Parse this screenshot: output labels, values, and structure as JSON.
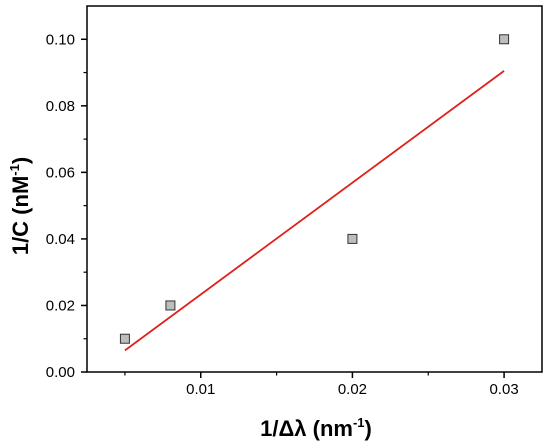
{
  "chart_data": {
    "type": "scatter",
    "xlabel": {
      "base": "1/Δλ (nm",
      "sup": "-1",
      "end": ")"
    },
    "ylabel": {
      "base": "1/C (nM",
      "sup": "-1",
      "end": ")"
    },
    "xlim": [
      0.0025,
      0.0325
    ],
    "ylim": [
      0.0,
      0.11
    ],
    "x_ticks": [
      0.01,
      0.02,
      0.03
    ],
    "x_tick_labels": [
      "0.01",
      "0.02",
      "0.03"
    ],
    "y_ticks": [
      0.0,
      0.02,
      0.04,
      0.06,
      0.08,
      0.1
    ],
    "y_tick_labels": [
      "0.00",
      "0.02",
      "0.04",
      "0.06",
      "0.08",
      "0.10"
    ],
    "grid": false,
    "series": [
      {
        "type": "scatter",
        "marker": "square",
        "color": "#bdbdbd",
        "points": [
          {
            "x": 0.005,
            "y": 0.01
          },
          {
            "x": 0.008,
            "y": 0.02
          },
          {
            "x": 0.02,
            "y": 0.04
          },
          {
            "x": 0.03,
            "y": 0.1
          }
        ]
      },
      {
        "type": "line",
        "color": "#e0201b",
        "points": [
          {
            "x": 0.005,
            "y": 0.0065
          },
          {
            "x": 0.03,
            "y": 0.0905
          }
        ]
      }
    ]
  }
}
